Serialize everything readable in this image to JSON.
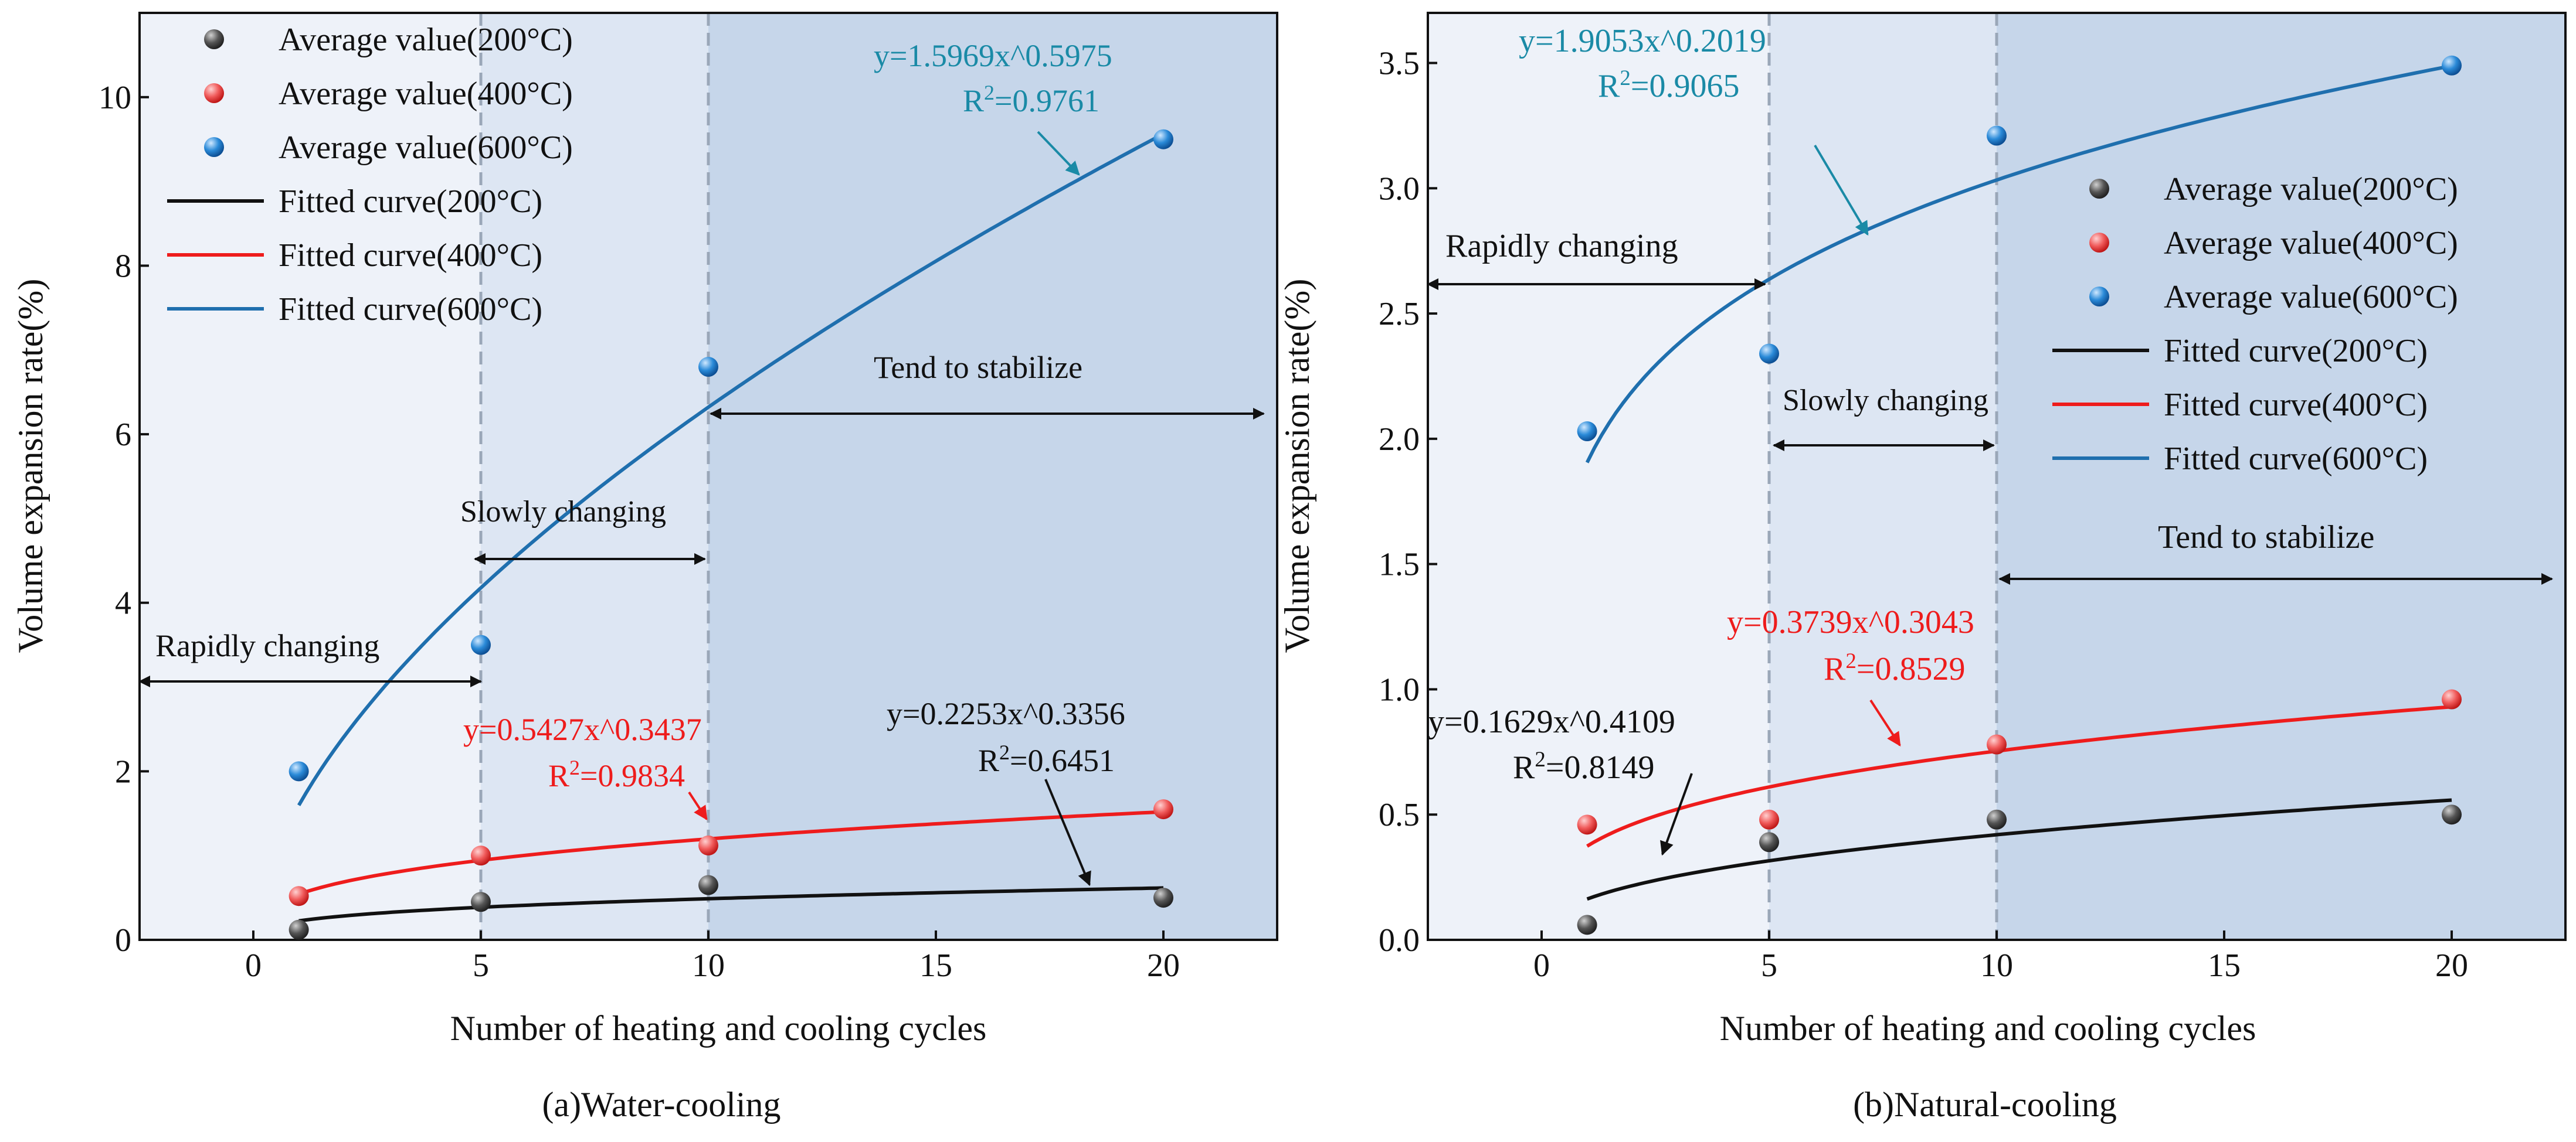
{
  "figure": {
    "captions": [
      "(a)Water-cooling",
      "(b)Natural-cooling"
    ]
  },
  "legend": {
    "entries": [
      {
        "label": "Average value(200°C)",
        "kind": "marker",
        "color": "#555555"
      },
      {
        "label": "Average value(400°C)",
        "kind": "marker",
        "color": "#f05a5a"
      },
      {
        "label": "Average value(600°C)",
        "kind": "marker",
        "color": "#2a8ad8"
      },
      {
        "label": "Fitted curve(200°C)",
        "kind": "line",
        "color": "#111111"
      },
      {
        "label": "Fitted curve(400°C)",
        "kind": "line",
        "color": "#ee1c1c"
      },
      {
        "label": "Fitted curve(600°C)",
        "kind": "line",
        "color": "#1f6fae"
      }
    ]
  },
  "colors": {
    "series_200_marker": "#555555",
    "series_400_marker": "#f05a5a",
    "series_600_marker": "#2a8ad8",
    "series_200_line": "#111111",
    "series_400_line": "#ee1c1c",
    "series_600_line": "#1f6fae",
    "annotation_400": "#ee1c1c",
    "annotation_600": "#1a8aa6",
    "zone_rapid": "#eef2f9",
    "zone_slow": "#dde6f3",
    "zone_stable": "#c6d6ea"
  },
  "chart_data": [
    {
      "type": "scatter",
      "panel": "a",
      "caption": "(a)Water-cooling",
      "xlabel": "Number of heating and cooling cycles",
      "ylabel": "Volume expansion rate(%)",
      "xlim": [
        -2.5,
        22.5
      ],
      "ylim": [
        0,
        11
      ],
      "xticks": [
        0,
        5,
        10,
        15,
        20
      ],
      "yticks": [
        0,
        2,
        4,
        6,
        8,
        10
      ],
      "zone_bounds": [
        5,
        10
      ],
      "series": [
        {
          "name": "Average value(200°C)",
          "x": [
            1,
            5,
            10,
            20
          ],
          "y": [
            0.12,
            0.45,
            0.65,
            0.5
          ],
          "fit": {
            "a": 0.2253,
            "b": 0.3356,
            "equation": "y=0.2253x^0.3356",
            "r2": "=0.6451"
          }
        },
        {
          "name": "Average value(400°C)",
          "x": [
            1,
            5,
            10,
            20
          ],
          "y": [
            0.52,
            1.0,
            1.12,
            1.55
          ],
          "fit": {
            "a": 0.5427,
            "b": 0.3437,
            "equation": "y=0.5427x^0.3437",
            "r2": "=0.9834"
          }
        },
        {
          "name": "Average value(600°C)",
          "x": [
            1,
            5,
            10,
            20
          ],
          "y": [
            2.0,
            3.5,
            6.8,
            9.5
          ],
          "fit": {
            "a": 1.5969,
            "b": 0.5975,
            "equation": "y=1.5969x^0.5975",
            "r2": "=0.9761"
          }
        }
      ],
      "zones": {
        "rapid": "Rapidly changing",
        "slow": "Slowly changing",
        "stable": "Tend to stabilize"
      }
    },
    {
      "type": "scatter",
      "panel": "b",
      "caption": "(b)Natural-cooling",
      "xlabel": "Number of heating and cooling cycles",
      "ylabel": "Volume expansion rate(%)",
      "xlim": [
        -2.5,
        22.5
      ],
      "ylim": [
        0,
        3.7
      ],
      "xticks": [
        0,
        5,
        10,
        15,
        20
      ],
      "yticks": [
        0.0,
        0.5,
        1.0,
        1.5,
        2.0,
        2.5,
        3.0,
        3.5
      ],
      "zone_bounds": [
        5,
        10
      ],
      "series": [
        {
          "name": "Average value(200°C)",
          "x": [
            1,
            5,
            10,
            20
          ],
          "y": [
            0.06,
            0.39,
            0.48,
            0.5
          ],
          "fit": {
            "a": 0.1629,
            "b": 0.4109,
            "equation": "y=0.1629x^0.4109",
            "r2": "=0.8149"
          }
        },
        {
          "name": "Average value(400°C)",
          "x": [
            1,
            5,
            10,
            20
          ],
          "y": [
            0.46,
            0.48,
            0.78,
            0.96
          ],
          "fit": {
            "a": 0.3739,
            "b": 0.3043,
            "equation": "y=0.3739x^0.3043",
            "r2": "=0.8529"
          }
        },
        {
          "name": "Average value(600°C)",
          "x": [
            1,
            5,
            10,
            20
          ],
          "y": [
            2.03,
            2.34,
            3.21,
            3.49
          ],
          "fit": {
            "a": 1.9053,
            "b": 0.2019,
            "equation": "y=1.9053x^0.2019",
            "r2": "=0.9065"
          }
        }
      ],
      "zones": {
        "rapid": "Rapidly changing",
        "slow": "Slowly changing",
        "stable": "Tend to stabilize"
      }
    }
  ]
}
